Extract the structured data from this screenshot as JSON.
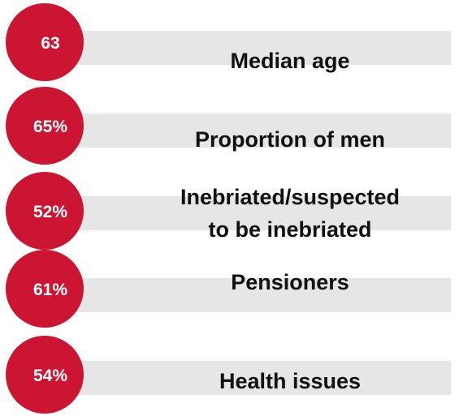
{
  "items": [
    {
      "value": "63",
      "label": [
        "Median age"
      ]
    },
    {
      "value": "65%",
      "label": [
        "Proportion of men"
      ]
    },
    {
      "value": "52%",
      "label": [
        "Inebriated/suspected",
        "to be inebriated"
      ]
    },
    {
      "value": "61%",
      "label": [
        "Pensioners"
      ]
    },
    {
      "value": "54%",
      "label": [
        "Health issues"
      ]
    }
  ]
}
